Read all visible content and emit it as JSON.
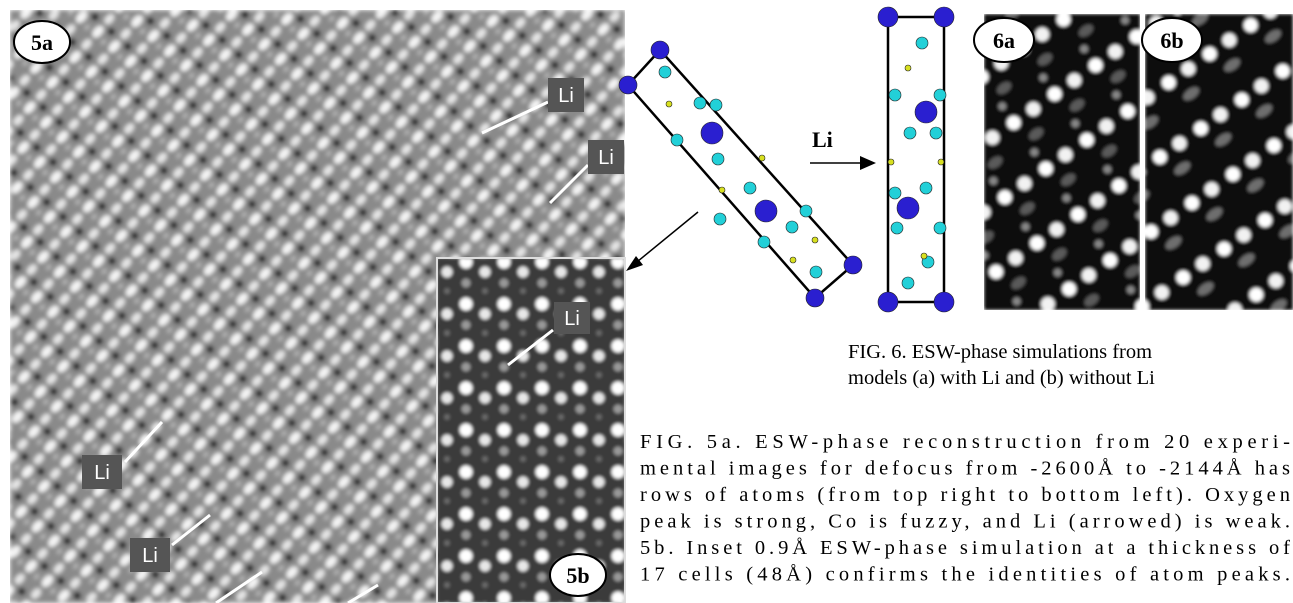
{
  "figure_5a": {
    "label": "5a",
    "li_labels": [
      "Li",
      "Li",
      "Li",
      "Li"
    ]
  },
  "figure_5b": {
    "label": "5b",
    "li_label": "Li"
  },
  "model": {
    "arrow_label": "Li"
  },
  "figure_6": {
    "labels": [
      "6a",
      "6b"
    ],
    "caption_lines": [
      "FIG. 6.  ESW-phase simulations from",
      "models (a) with Li and (b) without Li"
    ]
  },
  "figure_5_caption": {
    "lines": [
      "FIG. 5a. ESW-phase reconstruction from 20 experi-",
      "mental images for defocus from -2600Å to -2144Å has",
      "rows of atoms (from top right to bottom left).  Oxygen",
      "peak is strong, Co is fuzzy, and Li (arrowed) is weak.",
      "5b.  Inset 0.9Å ESW-phase simulation at a thickness of",
      "17 cells (48Å) confirms the identities of atom peaks."
    ]
  }
}
